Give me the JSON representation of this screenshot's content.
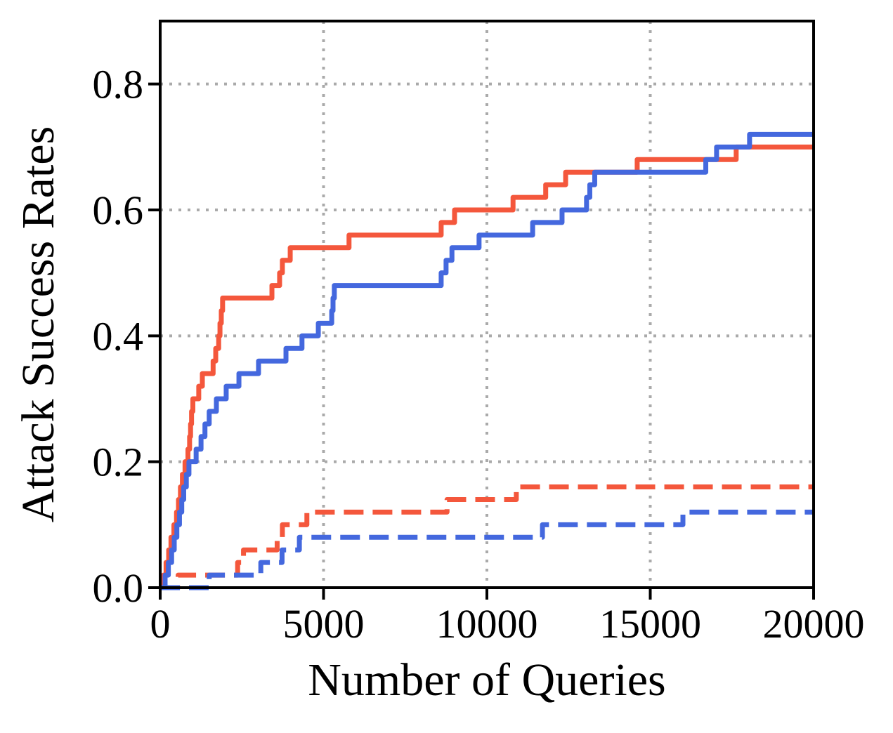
{
  "figure": {
    "background": "#ffffff",
    "frame_color": "#000000",
    "grid_color": "#aaaaaa",
    "grid_style": "dotted"
  },
  "chart_data": {
    "type": "line",
    "subtype": "step-post",
    "title": "",
    "xlabel": "Number of Queries",
    "ylabel": "Attack Success Rates",
    "xlim": [
      0,
      20000
    ],
    "ylim": [
      0,
      0.9
    ],
    "xticks": [
      0,
      5000,
      10000,
      15000,
      20000
    ],
    "xtick_labels": [
      "0",
      "5000",
      "10000",
      "15000",
      "20000"
    ],
    "yticks": [
      0.0,
      0.2,
      0.4,
      0.6,
      0.8
    ],
    "ytick_labels": [
      "0.0",
      "0.2",
      "0.4",
      "0.6",
      "0.8"
    ],
    "grid": true,
    "legend": "none",
    "series": [
      {
        "name": "dashed-red-curve",
        "color": "#F4573C",
        "style": "dashed",
        "final_value": 0.16,
        "step_points": [
          [
            0,
            0
          ],
          [
            550,
            0.02
          ],
          [
            2370,
            0.04
          ],
          [
            2550,
            0.06
          ],
          [
            3580,
            0.08
          ],
          [
            3740,
            0.1
          ],
          [
            4490,
            0.12
          ],
          [
            8780,
            0.14
          ],
          [
            10900,
            0.16
          ]
        ]
      },
      {
        "name": "dashed-blue-curve",
        "color": "#4468DE",
        "style": "dashed",
        "final_value": 0.12,
        "step_points": [
          [
            0,
            0
          ],
          [
            1500,
            0.02
          ],
          [
            3080,
            0.04
          ],
          [
            3730,
            0.06
          ],
          [
            4260,
            0.08
          ],
          [
            11700,
            0.1
          ],
          [
            16000,
            0.12
          ]
        ]
      },
      {
        "name": "solid-red-curve",
        "color": "#F4573C",
        "style": "solid",
        "final_value": 0.7,
        "step_points": [
          [
            0,
            0
          ],
          [
            100,
            0.02
          ],
          [
            180,
            0.04
          ],
          [
            260,
            0.06
          ],
          [
            330,
            0.08
          ],
          [
            420,
            0.1
          ],
          [
            500,
            0.12
          ],
          [
            560,
            0.14
          ],
          [
            620,
            0.16
          ],
          [
            680,
            0.18
          ],
          [
            760,
            0.2
          ],
          [
            850,
            0.22
          ],
          [
            900,
            0.24
          ],
          [
            930,
            0.26
          ],
          [
            960,
            0.28
          ],
          [
            1000,
            0.3
          ],
          [
            1180,
            0.32
          ],
          [
            1290,
            0.34
          ],
          [
            1620,
            0.36
          ],
          [
            1700,
            0.38
          ],
          [
            1790,
            0.4
          ],
          [
            1830,
            0.42
          ],
          [
            1870,
            0.44
          ],
          [
            1910,
            0.46
          ],
          [
            3420,
            0.48
          ],
          [
            3655,
            0.5
          ],
          [
            3740,
            0.52
          ],
          [
            3980,
            0.54
          ],
          [
            5780,
            0.56
          ],
          [
            8600,
            0.58
          ],
          [
            9010,
            0.6
          ],
          [
            10800,
            0.62
          ],
          [
            11800,
            0.64
          ],
          [
            12410,
            0.66
          ],
          [
            14600,
            0.68
          ],
          [
            17630,
            0.7
          ]
        ]
      },
      {
        "name": "solid-blue-curve",
        "color": "#4468DE",
        "style": "solid",
        "final_value": 0.72,
        "step_points": [
          [
            0,
            0
          ],
          [
            150,
            0.02
          ],
          [
            250,
            0.04
          ],
          [
            350,
            0.06
          ],
          [
            430,
            0.08
          ],
          [
            510,
            0.1
          ],
          [
            590,
            0.12
          ],
          [
            660,
            0.14
          ],
          [
            720,
            0.16
          ],
          [
            800,
            0.18
          ],
          [
            880,
            0.2
          ],
          [
            1100,
            0.22
          ],
          [
            1250,
            0.24
          ],
          [
            1370,
            0.26
          ],
          [
            1500,
            0.28
          ],
          [
            1720,
            0.3
          ],
          [
            2020,
            0.32
          ],
          [
            2410,
            0.34
          ],
          [
            3010,
            0.36
          ],
          [
            3850,
            0.38
          ],
          [
            4340,
            0.4
          ],
          [
            4840,
            0.42
          ],
          [
            5250,
            0.44
          ],
          [
            5290,
            0.46
          ],
          [
            5330,
            0.48
          ],
          [
            8600,
            0.5
          ],
          [
            8750,
            0.52
          ],
          [
            8930,
            0.54
          ],
          [
            9760,
            0.56
          ],
          [
            11400,
            0.58
          ],
          [
            12300,
            0.6
          ],
          [
            13050,
            0.62
          ],
          [
            13150,
            0.64
          ],
          [
            13300,
            0.66
          ],
          [
            16700,
            0.68
          ],
          [
            17030,
            0.7
          ],
          [
            18040,
            0.72
          ]
        ]
      }
    ]
  }
}
